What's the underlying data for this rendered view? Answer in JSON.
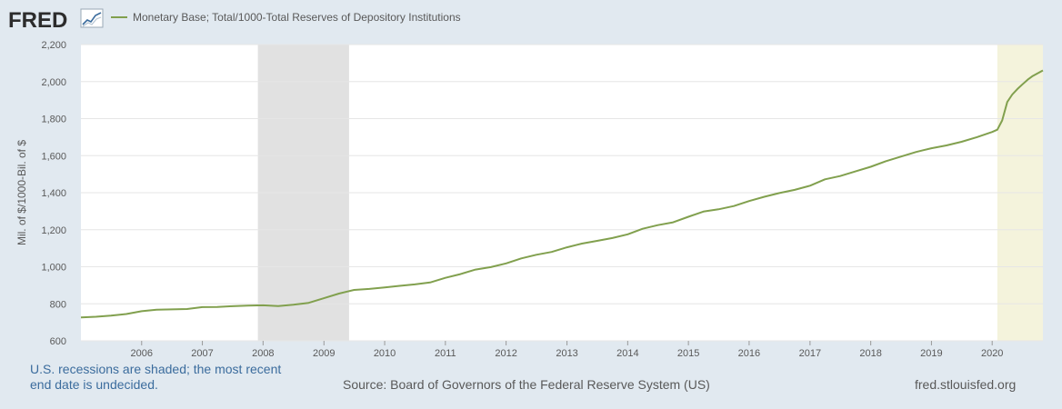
{
  "header": {
    "logo_text": "FRED",
    "logo_icon": "line-graph-icon"
  },
  "colors": {
    "series": "#81a04e",
    "recession": "#e1e1e1",
    "undecided": "#f4f3dc",
    "background": "#e1e9f0",
    "plot": "#ffffff",
    "grid": "#e6e6e6",
    "text": "#595959",
    "note": "#3b6c9d"
  },
  "chart_data": {
    "type": "line",
    "title": "",
    "xlabel": "",
    "ylabel": "Mil. of $/1000-Bil. of $",
    "ylim": [
      600,
      2200
    ],
    "y_ticks": [
      600,
      800,
      1000,
      1200,
      1400,
      1600,
      1800,
      2000,
      2200
    ],
    "y_tick_labels": [
      "600",
      "800",
      "1,000",
      "1,200",
      "1,400",
      "1,600",
      "1,800",
      "2,000",
      "2,200"
    ],
    "xlim": [
      "2005-01-01",
      "2020-11-01"
    ],
    "x_tick_labels": [
      "2006",
      "2007",
      "2008",
      "2009",
      "2010",
      "2011",
      "2012",
      "2013",
      "2014",
      "2015",
      "2016",
      "2017",
      "2018",
      "2019",
      "2020"
    ],
    "grid": true,
    "legend_placement": "top-left",
    "recessions": [
      {
        "start": "2007-12-01",
        "end": "2009-06-01",
        "label": "recession"
      },
      {
        "start": "2020-02-01",
        "end": "2020-11-01",
        "label": "recession-undecided"
      }
    ],
    "series": [
      {
        "name": "Monetary Base; Total/1000-Total Reserves of Depository Institutions",
        "x": [
          "2005-01-01",
          "2005-04-01",
          "2005-07-01",
          "2005-10-01",
          "2006-01-01",
          "2006-04-01",
          "2006-07-01",
          "2006-10-01",
          "2007-01-01",
          "2007-04-01",
          "2007-07-01",
          "2007-10-01",
          "2008-01-01",
          "2008-04-01",
          "2008-07-01",
          "2008-10-01",
          "2009-01-01",
          "2009-04-01",
          "2009-07-01",
          "2009-10-01",
          "2010-01-01",
          "2010-04-01",
          "2010-07-01",
          "2010-10-01",
          "2011-01-01",
          "2011-04-01",
          "2011-07-01",
          "2011-10-01",
          "2012-01-01",
          "2012-04-01",
          "2012-07-01",
          "2012-10-01",
          "2013-01-01",
          "2013-04-01",
          "2013-07-01",
          "2013-10-01",
          "2014-01-01",
          "2014-04-01",
          "2014-07-01",
          "2014-10-01",
          "2015-01-01",
          "2015-04-01",
          "2015-07-01",
          "2015-10-01",
          "2016-01-01",
          "2016-04-01",
          "2016-07-01",
          "2016-10-01",
          "2017-01-01",
          "2017-04-01",
          "2017-07-01",
          "2017-10-01",
          "2018-01-01",
          "2018-04-01",
          "2018-07-01",
          "2018-10-01",
          "2019-01-01",
          "2019-04-01",
          "2019-07-01",
          "2019-10-01",
          "2020-01-01",
          "2020-02-01",
          "2020-03-01",
          "2020-04-01",
          "2020-05-01",
          "2020-06-01",
          "2020-07-01",
          "2020-08-01",
          "2020-09-01",
          "2020-10-01",
          "2020-11-01"
        ],
        "values": [
          726,
          730,
          736,
          745,
          760,
          768,
          770,
          772,
          782,
          783,
          787,
          790,
          792,
          788,
          795,
          805,
          830,
          855,
          875,
          880,
          888,
          897,
          905,
          915,
          940,
          960,
          985,
          998,
          1018,
          1045,
          1065,
          1080,
          1105,
          1125,
          1140,
          1155,
          1175,
          1205,
          1225,
          1240,
          1270,
          1298,
          1310,
          1328,
          1355,
          1378,
          1398,
          1415,
          1438,
          1472,
          1490,
          1515,
          1540,
          1570,
          1595,
          1620,
          1640,
          1655,
          1675,
          1700,
          1728,
          1740,
          1790,
          1890,
          1930,
          1960,
          1985,
          2010,
          2030,
          2045,
          2060
        ]
      }
    ]
  },
  "footer": {
    "note": "U.S. recessions are shaded; the most recent end date is undecided.",
    "source": "Source: Board of Governors of the Federal Reserve System (US)",
    "site": "fred.stlouisfed.org"
  }
}
